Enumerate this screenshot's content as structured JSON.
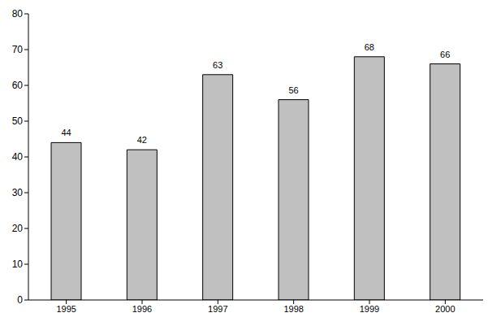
{
  "chart_data": {
    "type": "bar",
    "categories": [
      "1995",
      "1996",
      "1997",
      "1998",
      "1999",
      "2000"
    ],
    "values": [
      44,
      42,
      63,
      56,
      68,
      66
    ],
    "color": "#c0c0c0",
    "ylim": [
      0,
      80
    ],
    "yticks": [
      0,
      10,
      20,
      30,
      40,
      50,
      60,
      70,
      80
    ],
    "grid": false,
    "data_labels": true
  }
}
